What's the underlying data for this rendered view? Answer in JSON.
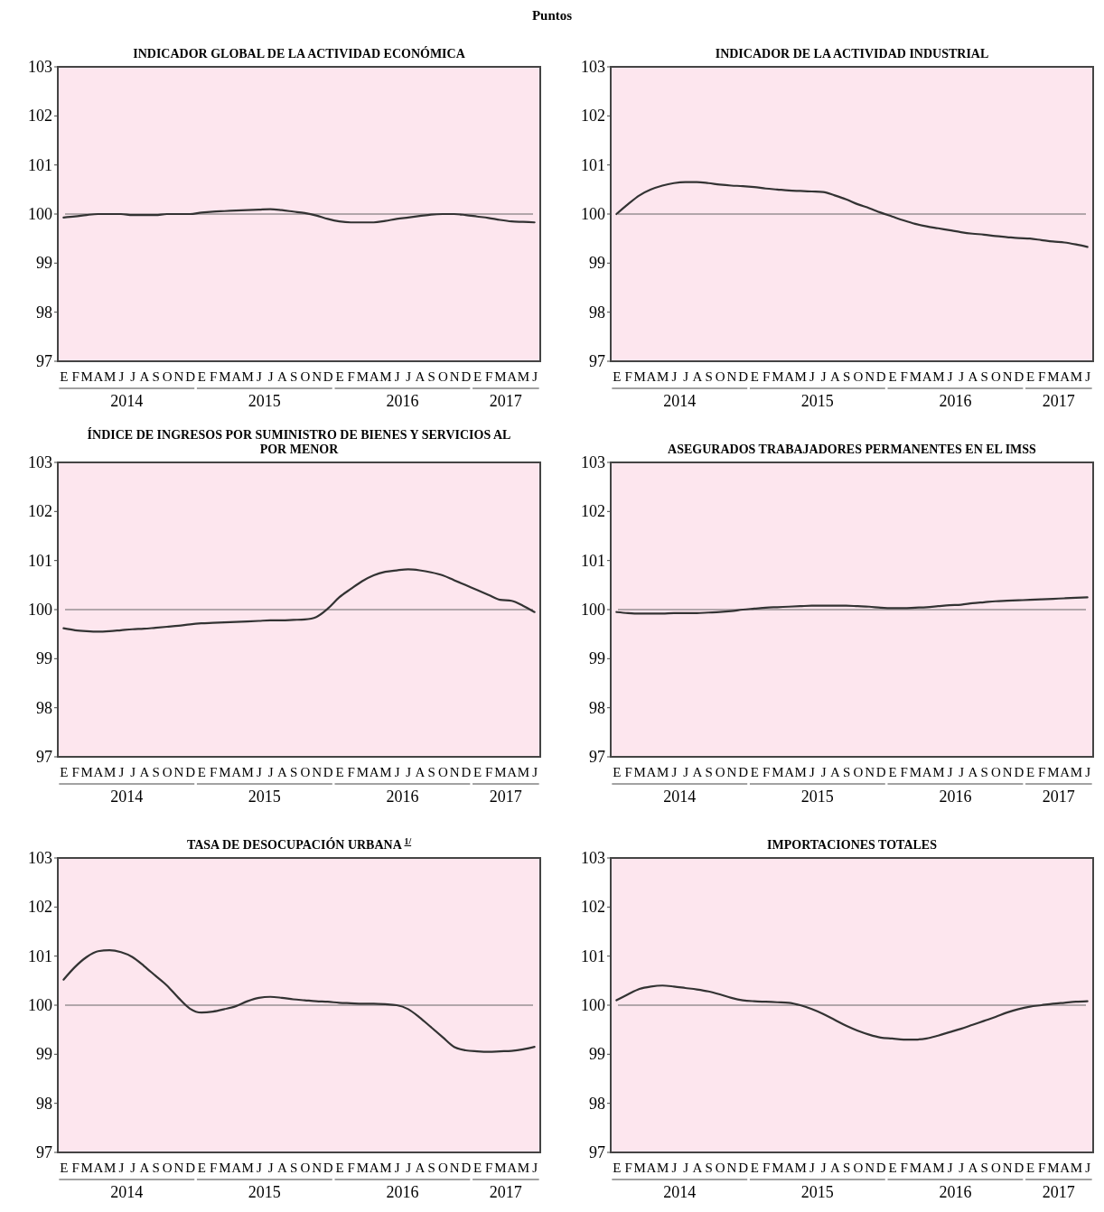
{
  "chart_data": [
    {
      "type": "line",
      "subtitle": "Puntos",
      "title": "INDICADOR GLOBAL DE LA ACTIVIDAD ECONÓMICA",
      "annotations": [
        "2014",
        "2015",
        "2016",
        "2017"
      ],
      "categories": [
        "E",
        "F",
        "M",
        "A",
        "M",
        "J",
        "J",
        "A",
        "S",
        "O",
        "N",
        "D",
        "E",
        "F",
        "M",
        "A",
        "M",
        "J",
        "J",
        "A",
        "S",
        "O",
        "N",
        "D",
        "E",
        "F",
        "M",
        "A",
        "M",
        "J",
        "J",
        "A",
        "S",
        "O",
        "N",
        "D",
        "E",
        "F",
        "M",
        "A",
        "M",
        "J"
      ],
      "series": [
        {
          "color": "#333333",
          "values": [
            99.93,
            99.95,
            99.98,
            100.0,
            100.0,
            100.0,
            99.98,
            99.98,
            99.98,
            100.0,
            100.0,
            100.0,
            100.03,
            100.05,
            100.06,
            100.07,
            100.08,
            100.09,
            100.1,
            100.08,
            100.05,
            100.02,
            99.97,
            99.9,
            99.85,
            99.83,
            99.83,
            99.83,
            99.86,
            99.9,
            99.93,
            99.96,
            99.99,
            100.0,
            100.0,
            99.98,
            99.95,
            99.92,
            99.88,
            99.85,
            99.84,
            99.83
          ]
        }
      ],
      "ylim": [
        97,
        103
      ],
      "yticks": [
        97,
        98,
        99,
        100,
        101,
        102,
        103
      ],
      "ref_lines": [
        {
          "axis": "y",
          "value": 100,
          "color": "#666666"
        }
      ]
    },
    {
      "type": "line",
      "title": "INDICADOR DE LA ACTIVIDAD INDUSTRIAL",
      "annotations": [
        "2014",
        "2015",
        "2016",
        "2017"
      ],
      "categories": [
        "E",
        "F",
        "M",
        "A",
        "M",
        "J",
        "J",
        "A",
        "S",
        "O",
        "N",
        "D",
        "E",
        "F",
        "M",
        "A",
        "M",
        "J",
        "J",
        "A",
        "S",
        "O",
        "N",
        "D",
        "E",
        "F",
        "M",
        "A",
        "M",
        "J",
        "J",
        "A",
        "S",
        "O",
        "N",
        "D",
        "E",
        "F",
        "M",
        "A",
        "M",
        "J"
      ],
      "series": [
        {
          "color": "#333333",
          "values": [
            100.0,
            100.2,
            100.38,
            100.5,
            100.58,
            100.63,
            100.65,
            100.65,
            100.63,
            100.6,
            100.58,
            100.57,
            100.55,
            100.52,
            100.5,
            100.48,
            100.47,
            100.46,
            100.45,
            100.38,
            100.3,
            100.2,
            100.12,
            100.03,
            99.95,
            99.87,
            99.8,
            99.75,
            99.71,
            99.67,
            99.63,
            99.6,
            99.58,
            99.55,
            99.53,
            99.51,
            99.5,
            99.47,
            99.44,
            99.42,
            99.38,
            99.33
          ]
        }
      ],
      "ylim": [
        97,
        103
      ],
      "yticks": [
        97,
        98,
        99,
        100,
        101,
        102,
        103
      ],
      "ref_lines": [
        {
          "axis": "y",
          "value": 100,
          "color": "#666666"
        }
      ]
    },
    {
      "type": "line",
      "title": "ÍNDICE DE INGRESOS POR SUMINISTRO DE BIENES Y SERVICIOS AL POR MENOR",
      "annotations": [
        "2014",
        "2015",
        "2016",
        "2017"
      ],
      "categories": [
        "E",
        "F",
        "M",
        "A",
        "M",
        "J",
        "J",
        "A",
        "S",
        "O",
        "N",
        "D",
        "E",
        "F",
        "M",
        "A",
        "M",
        "J",
        "J",
        "A",
        "S",
        "O",
        "N",
        "D",
        "E",
        "F",
        "M",
        "A",
        "M",
        "J",
        "J",
        "A",
        "S",
        "O",
        "N",
        "D",
        "E",
        "F",
        "M",
        "A",
        "M",
        "J"
      ],
      "series": [
        {
          "color": "#333333",
          "values": [
            99.62,
            99.58,
            99.56,
            99.55,
            99.56,
            99.58,
            99.6,
            99.61,
            99.63,
            99.65,
            99.67,
            99.7,
            99.72,
            99.73,
            99.74,
            99.75,
            99.76,
            99.77,
            99.78,
            99.78,
            99.79,
            99.8,
            99.85,
            100.02,
            100.25,
            100.42,
            100.58,
            100.7,
            100.77,
            100.8,
            100.82,
            100.8,
            100.76,
            100.7,
            100.6,
            100.5,
            100.4,
            100.3,
            100.2,
            100.18,
            100.08,
            99.95
          ]
        }
      ],
      "ylim": [
        97,
        103
      ],
      "yticks": [
        97,
        98,
        99,
        100,
        101,
        102,
        103
      ],
      "ref_lines": [
        {
          "axis": "y",
          "value": 100,
          "color": "#666666"
        }
      ]
    },
    {
      "type": "line",
      "title": "ASEGURADOS TRABAJADORES PERMANENTES EN EL IMSS",
      "annotations": [
        "2014",
        "2015",
        "2016",
        "2017"
      ],
      "categories": [
        "E",
        "F",
        "M",
        "A",
        "M",
        "J",
        "J",
        "A",
        "S",
        "O",
        "N",
        "D",
        "E",
        "F",
        "M",
        "A",
        "M",
        "J",
        "J",
        "A",
        "S",
        "O",
        "N",
        "D",
        "E",
        "F",
        "M",
        "A",
        "M",
        "J",
        "J",
        "A",
        "S",
        "O",
        "N",
        "D",
        "E",
        "F",
        "M",
        "A",
        "M",
        "J"
      ],
      "series": [
        {
          "color": "#333333",
          "values": [
            99.95,
            99.93,
            99.92,
            99.92,
            99.92,
            99.93,
            99.93,
            99.93,
            99.94,
            99.95,
            99.97,
            100.0,
            100.02,
            100.04,
            100.05,
            100.06,
            100.07,
            100.08,
            100.08,
            100.08,
            100.08,
            100.07,
            100.06,
            100.04,
            100.03,
            100.03,
            100.04,
            100.05,
            100.07,
            100.09,
            100.1,
            100.13,
            100.15,
            100.17,
            100.18,
            100.19,
            100.2,
            100.21,
            100.22,
            100.23,
            100.24,
            100.25
          ]
        }
      ],
      "ylim": [
        97,
        103
      ],
      "yticks": [
        97,
        98,
        99,
        100,
        101,
        102,
        103
      ],
      "ref_lines": [
        {
          "axis": "y",
          "value": 100,
          "color": "#666666"
        }
      ]
    },
    {
      "type": "line",
      "title": "TASA DE DESOCUPACIÓN URBANA $^{1/}$",
      "annotations": [
        "2014",
        "2015",
        "2016",
        "2017"
      ],
      "categories": [
        "E",
        "F",
        "M",
        "A",
        "M",
        "J",
        "J",
        "A",
        "S",
        "O",
        "N",
        "D",
        "E",
        "F",
        "M",
        "A",
        "M",
        "J",
        "J",
        "A",
        "S",
        "O",
        "N",
        "D",
        "E",
        "F",
        "M",
        "A",
        "M",
        "J",
        "J",
        "A",
        "S",
        "O",
        "N",
        "D",
        "E",
        "F",
        "M",
        "A",
        "M",
        "J"
      ],
      "series": [
        {
          "color": "#333333",
          "values": [
            100.52,
            100.78,
            100.98,
            101.1,
            101.12,
            101.08,
            100.98,
            100.8,
            100.6,
            100.4,
            100.15,
            99.93,
            99.85,
            99.87,
            99.92,
            99.98,
            100.08,
            100.15,
            100.17,
            100.15,
            100.12,
            100.1,
            100.08,
            100.07,
            100.05,
            100.04,
            100.03,
            100.03,
            100.02,
            100.0,
            99.92,
            99.75,
            99.55,
            99.35,
            99.15,
            99.08,
            99.06,
            99.05,
            99.06,
            99.07,
            99.1,
            99.15
          ]
        }
      ],
      "ylim": [
        97,
        103
      ],
      "yticks": [
        97,
        98,
        99,
        100,
        101,
        102,
        103
      ],
      "ref_lines": [
        {
          "axis": "y",
          "value": 100,
          "color": "#666666"
        }
      ]
    },
    {
      "type": "line",
      "title": "IMPORTACIONES TOTALES",
      "annotations": [
        "2014",
        "2015",
        "2016",
        "2017"
      ],
      "categories": [
        "E",
        "F",
        "M",
        "A",
        "M",
        "J",
        "J",
        "A",
        "S",
        "O",
        "N",
        "D",
        "E",
        "F",
        "M",
        "A",
        "M",
        "J",
        "J",
        "A",
        "S",
        "O",
        "N",
        "D",
        "E",
        "F",
        "M",
        "A",
        "M",
        "J",
        "J",
        "A",
        "S",
        "O",
        "N",
        "D",
        "E",
        "F",
        "M",
        "A",
        "M",
        "J"
      ],
      "series": [
        {
          "color": "#333333",
          "values": [
            100.1,
            100.22,
            100.33,
            100.38,
            100.4,
            100.38,
            100.35,
            100.32,
            100.28,
            100.22,
            100.15,
            100.1,
            100.08,
            100.07,
            100.06,
            100.05,
            100.0,
            99.92,
            99.82,
            99.7,
            99.58,
            99.48,
            99.4,
            99.34,
            99.32,
            99.3,
            99.3,
            99.32,
            99.38,
            99.45,
            99.52,
            99.6,
            99.68,
            99.76,
            99.85,
            99.92,
            99.97,
            100.0,
            100.03,
            100.05,
            100.07,
            100.08
          ]
        }
      ],
      "ylim": [
        97,
        103
      ],
      "yticks": [
        97,
        98,
        99,
        100,
        101,
        102,
        103
      ],
      "ref_lines": [
        {
          "axis": "y",
          "value": 100,
          "color": "#666666"
        }
      ]
    }
  ]
}
